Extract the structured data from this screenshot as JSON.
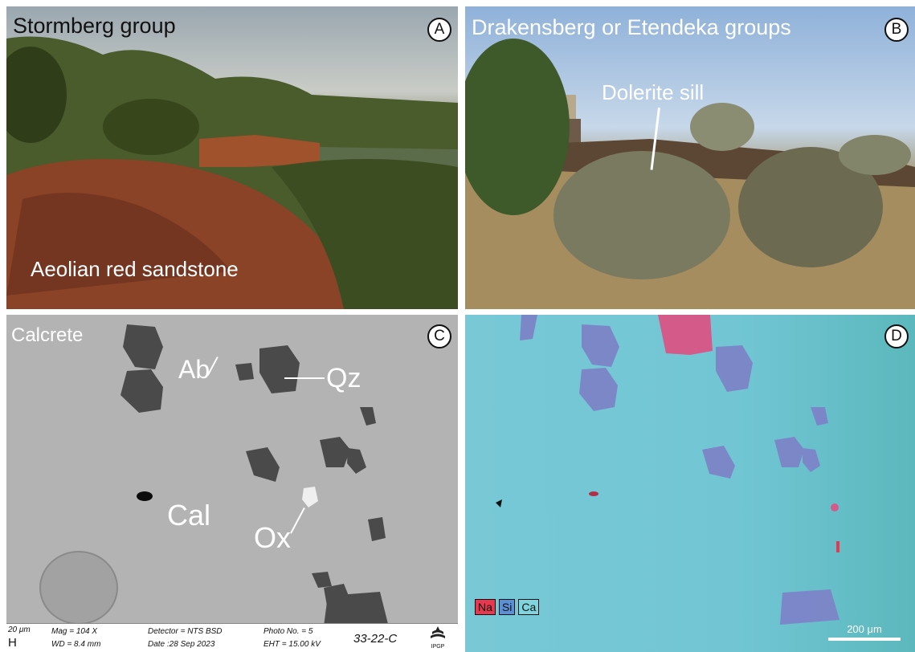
{
  "panels": {
    "a": {
      "title": "Stormberg group",
      "badge": "A",
      "labels": {
        "rock": "Aeolian red sandstone"
      }
    },
    "b": {
      "title": "Drakensberg or Etendeka groups",
      "badge": "B",
      "labels": {
        "sill": "Dolerite sill"
      }
    },
    "c": {
      "title": "Calcrete",
      "badge": "C",
      "labels": {
        "ab": "Ab",
        "qz": "Qz",
        "cal": "Cal",
        "ox": "Ox"
      },
      "infobar": {
        "scale_text": "20 μm",
        "h": "H",
        "mag": "Mag =   104 X",
        "wd": "WD =  8.4 mm",
        "detector": "Detector = NTS BSD",
        "date": "Date :28 Sep 2023",
        "photo": "Photo No. = 5",
        "eht": "EHT = 15.00 kV",
        "sample": "33-22-C",
        "logo_text": "IPGP"
      }
    },
    "d": {
      "badge": "D",
      "legend": [
        {
          "label": "Na",
          "color": "#e8384f"
        },
        {
          "label": "Si",
          "color": "#5b8fd6"
        },
        {
          "label": "Ca",
          "color": "#7fd4de"
        }
      ],
      "scale_label": "200 μm"
    }
  },
  "colors": {
    "badge_border": "#111111",
    "label_text": "#ffffff",
    "quartz_grain": "#4a4a4a",
    "si_grain": "#7d84c8",
    "na_spot": "#d45a8a"
  }
}
